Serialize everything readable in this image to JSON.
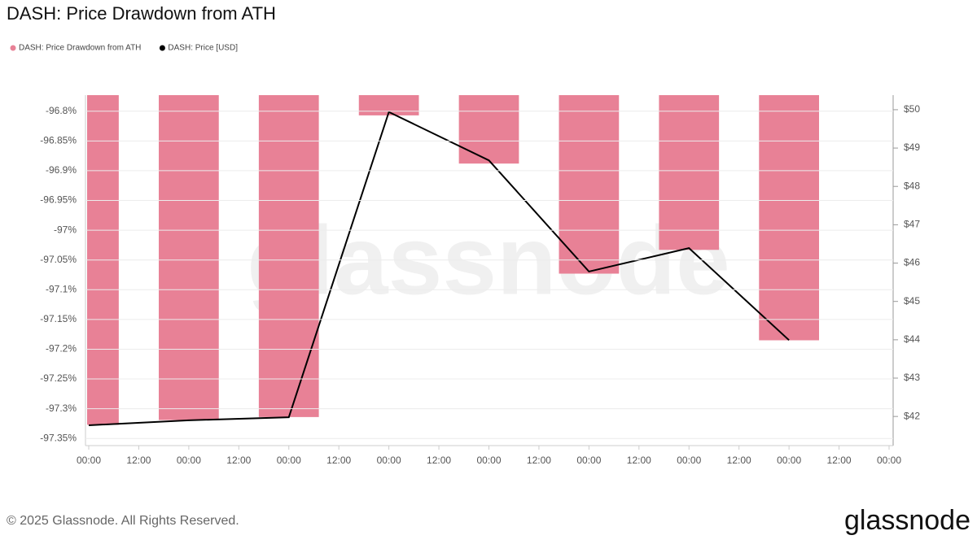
{
  "chart_data": {
    "type": "bar-line",
    "title": "DASH: Price Drawdown from ATH",
    "x": [
      0,
      24,
      48,
      72,
      96,
      120,
      144,
      168
    ],
    "xlim": [
      0,
      192
    ],
    "xticks": [
      {
        "value": 0,
        "label": "00:00"
      },
      {
        "value": 12,
        "label": "12:00"
      },
      {
        "value": 24,
        "label": "00:00"
      },
      {
        "value": 36,
        "label": "12:00"
      },
      {
        "value": 48,
        "label": "00:00"
      },
      {
        "value": 60,
        "label": "12:00"
      },
      {
        "value": 72,
        "label": "00:00"
      },
      {
        "value": 84,
        "label": "12:00"
      },
      {
        "value": 96,
        "label": "00:00"
      },
      {
        "value": 108,
        "label": "12:00"
      },
      {
        "value": 120,
        "label": "00:00"
      },
      {
        "value": 132,
        "label": "12:00"
      },
      {
        "value": 144,
        "label": "00:00"
      },
      {
        "value": 156,
        "label": "12:00"
      },
      {
        "value": 168,
        "label": "00:00"
      },
      {
        "value": 180,
        "label": "12:00"
      },
      {
        "value": 192,
        "label": "00:00"
      }
    ],
    "ylim": [
      -97.362,
      -96.773
    ],
    "yticks": [
      {
        "value": -96.8,
        "label": "-96.8%"
      },
      {
        "value": -96.85,
        "label": "-96.85%"
      },
      {
        "value": -96.9,
        "label": "-96.9%"
      },
      {
        "value": -96.95,
        "label": "-96.95%"
      },
      {
        "value": -97,
        "label": "-97%"
      },
      {
        "value": -97.05,
        "label": "-97.05%"
      },
      {
        "value": -97.1,
        "label": "-97.1%"
      },
      {
        "value": -97.15,
        "label": "-97.15%"
      },
      {
        "value": -97.2,
        "label": "-97.2%"
      },
      {
        "value": -97.25,
        "label": "-97.25%"
      },
      {
        "value": -97.3,
        "label": "-97.3%"
      },
      {
        "value": -97.35,
        "label": "-97.35%"
      }
    ],
    "y2lim": [
      41.24,
      50.38
    ],
    "y2ticks": [
      {
        "value": 42,
        "label": "$42"
      },
      {
        "value": 43,
        "label": "$43"
      },
      {
        "value": 44,
        "label": "$44"
      },
      {
        "value": 45,
        "label": "$45"
      },
      {
        "value": 46,
        "label": "$46"
      },
      {
        "value": 47,
        "label": "$47"
      },
      {
        "value": 48,
        "label": "$48"
      },
      {
        "value": 49,
        "label": "$49"
      },
      {
        "value": 50,
        "label": "$50"
      }
    ],
    "grid": true,
    "series": [
      {
        "name": "DASH: Price Drawdown from ATH",
        "color": "#e88196",
        "type": "bar",
        "values": [
          -97.327,
          -97.319,
          -97.314,
          -96.807,
          -96.888,
          -97.073,
          -97.033,
          -97.185
        ]
      },
      {
        "name": "DASH: Price [USD]",
        "color": "#000000",
        "type": "line",
        "axis": "y2",
        "values": [
          41.77,
          41.9,
          41.98,
          49.94,
          48.68,
          45.78,
          46.39,
          43.99
        ]
      }
    ],
    "watermark": "glassnode",
    "footer": "© 2025 Glassnode. All Rights Reserved.",
    "logo": "glassnode"
  }
}
